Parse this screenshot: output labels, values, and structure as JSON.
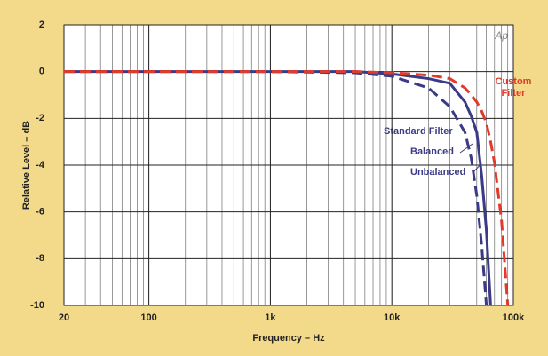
{
  "chart_data": {
    "type": "line",
    "xlabel": "Frequency – Hz",
    "ylabel": "Relative Level – dB",
    "logo": "Ap",
    "annotation": "Standard Filter",
    "x": [
      20,
      1000,
      5000,
      10000,
      20000,
      30000,
      40000,
      45000,
      50000,
      55000,
      60000,
      65000,
      70000,
      80000,
      90000
    ],
    "series": [
      {
        "name": "Balanced",
        "color": "#3a3a86",
        "dash": false,
        "values": [
          0,
          0,
          0,
          -0.1,
          -0.3,
          -0.5,
          -1.3,
          -1.9,
          -2.6,
          -4.5,
          -6.8,
          -10,
          null,
          null,
          null
        ]
      },
      {
        "name": "Unbalanced",
        "color": "#3a3a86",
        "dash": true,
        "values": [
          0,
          0,
          -0.05,
          -0.2,
          -0.7,
          -1.5,
          -2.6,
          -3.7,
          -5.3,
          -7.5,
          -10,
          null,
          null,
          null,
          null
        ]
      },
      {
        "name": "Custom Filter",
        "color": "#e03a2a",
        "dash": true,
        "values": [
          0,
          0,
          0,
          -0.05,
          -0.15,
          -0.3,
          -0.7,
          -1.0,
          -1.3,
          -1.7,
          -2.2,
          -3.0,
          -3.9,
          -6.4,
          -10
        ]
      }
    ],
    "xlim": [
      20,
      100000
    ],
    "ylim": [
      -10,
      2
    ],
    "xlog": true,
    "xticks": [
      20,
      100,
      {
        "value": 1000,
        "label": "1k"
      },
      {
        "value": 10000,
        "label": "10k"
      },
      {
        "value": 100000,
        "label": "100k"
      }
    ],
    "yticks": [
      2,
      0,
      -2,
      -4,
      -6,
      -8,
      -10
    ],
    "grid": true
  }
}
